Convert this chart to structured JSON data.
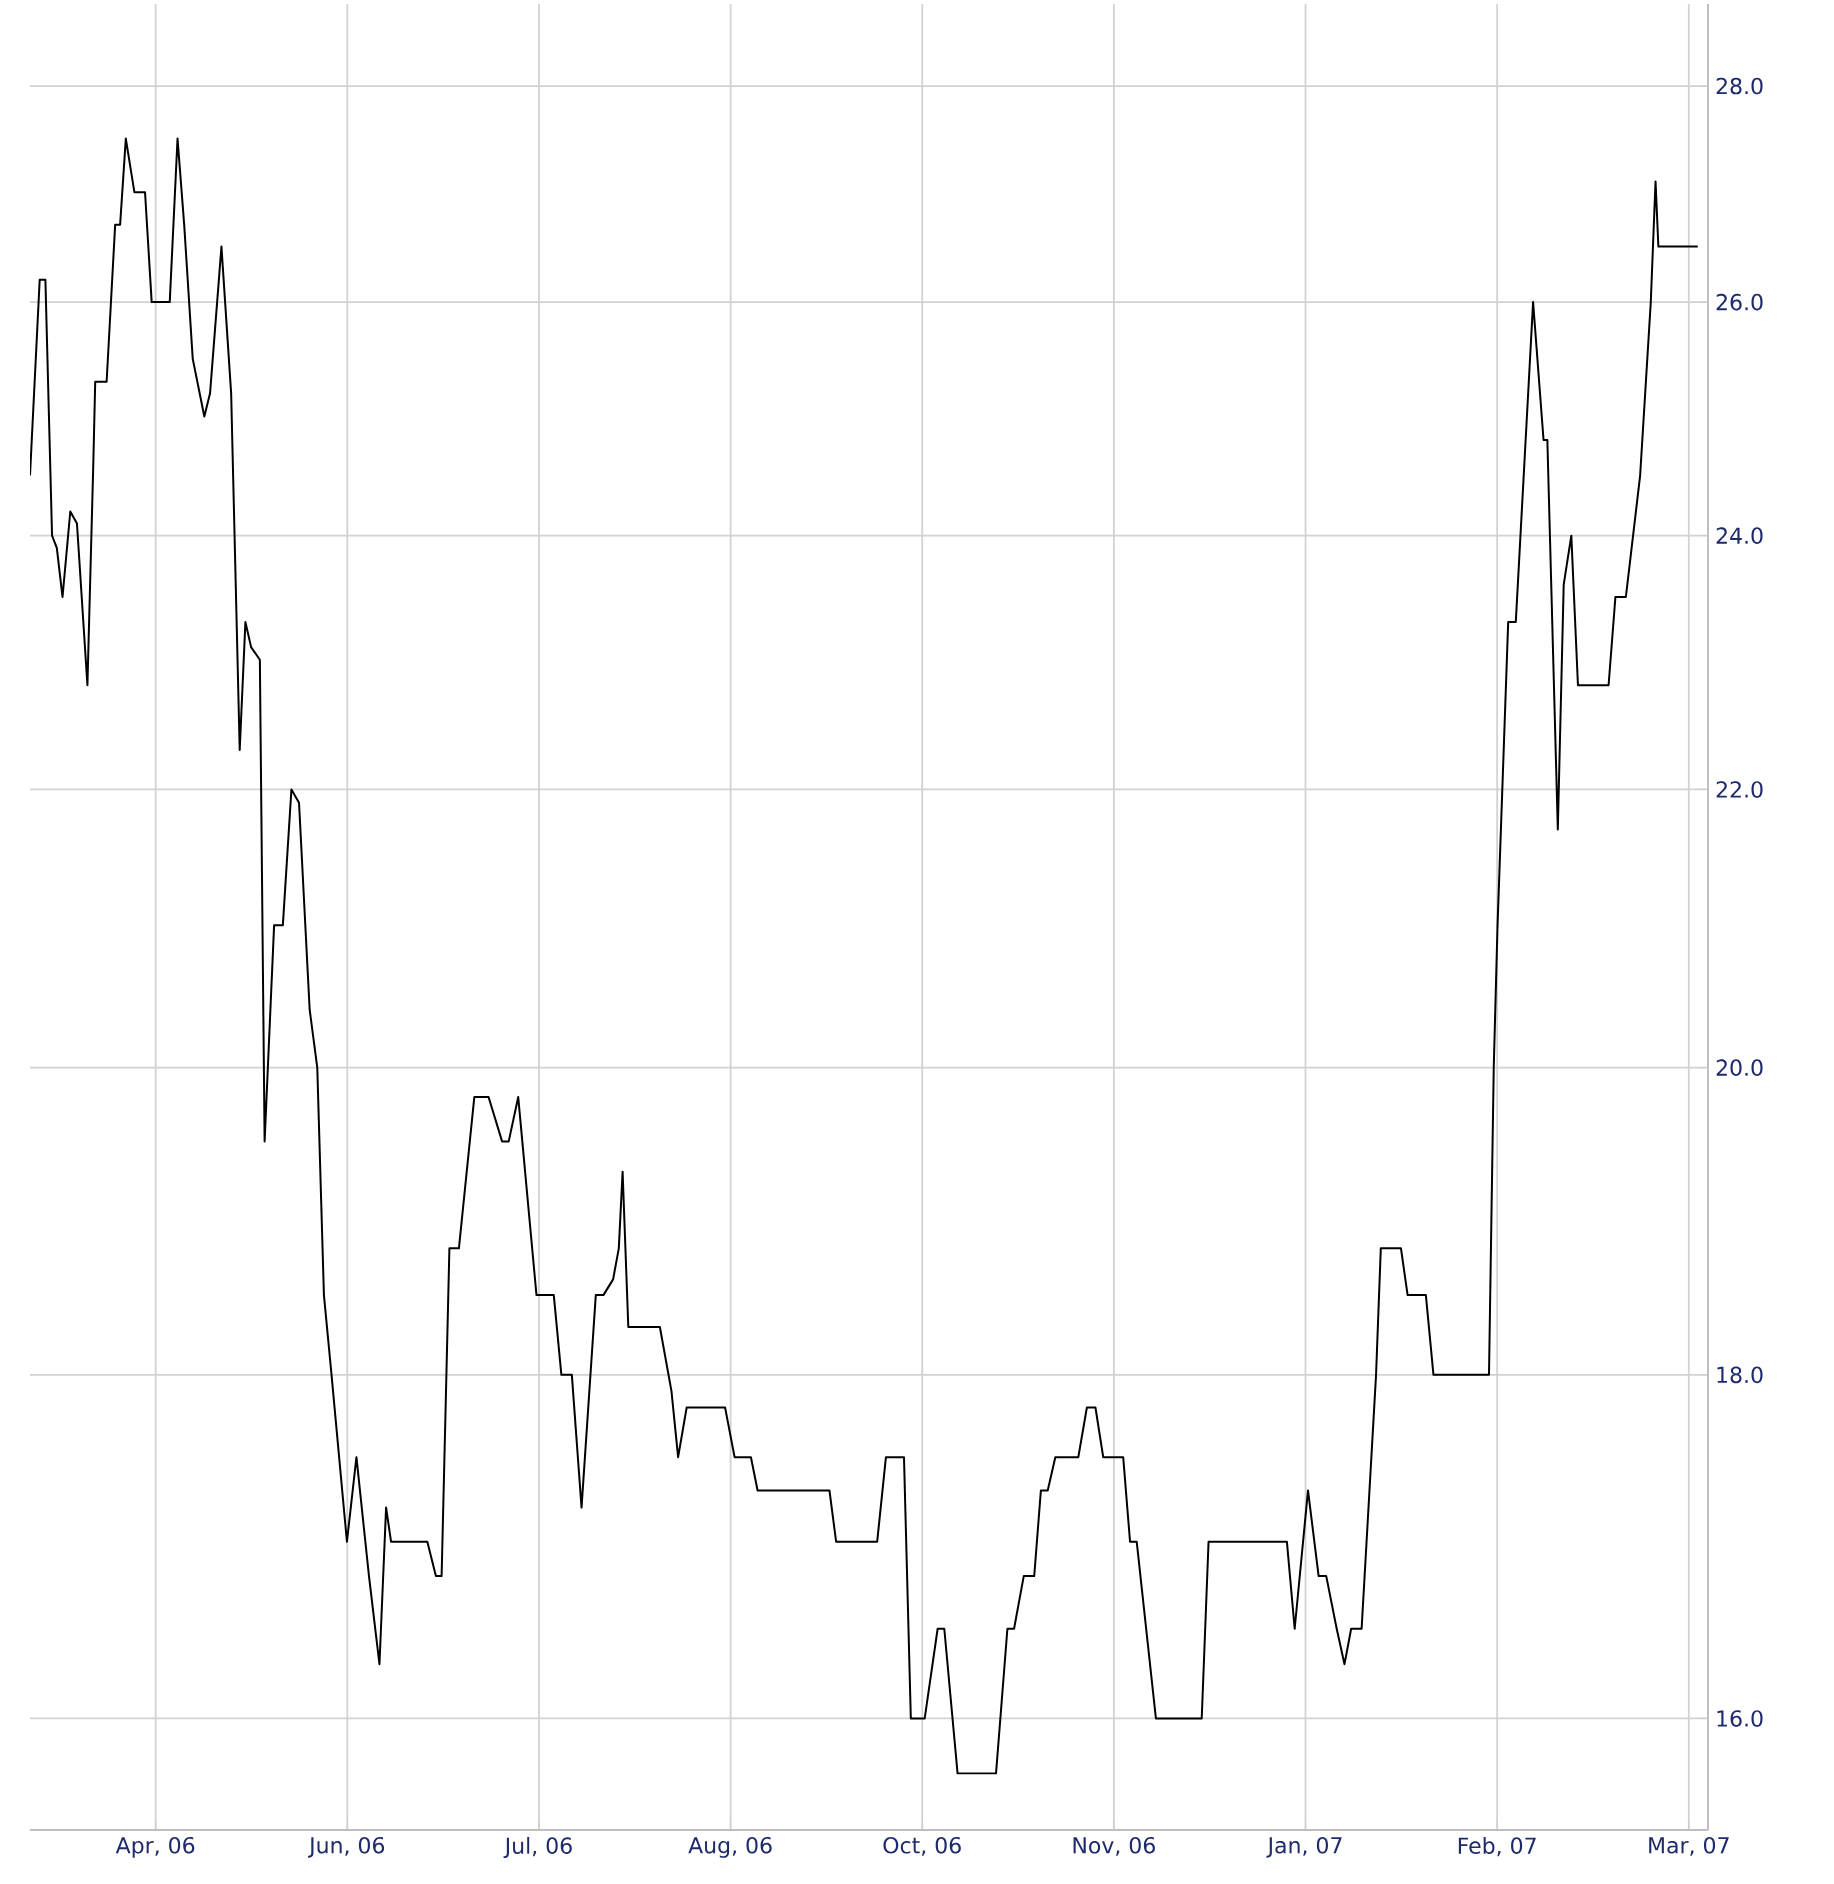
{
  "chart_data": {
    "type": "line",
    "color": "#000000",
    "log": "y",
    "grid": true,
    "xlim": [
      "2006-03-29T11:00",
      "2007-04-01T05:00"
    ],
    "ylim": [
      15.4,
      28.8
    ],
    "xticks": [
      {
        "value": "2006-04-26",
        "label": "Apr, 06"
      },
      {
        "value": "2006-06-07",
        "label": "Jun, 06"
      },
      {
        "value": "2006-07-19",
        "label": "Jul, 06"
      },
      {
        "value": "2006-08-30",
        "label": "Aug, 06"
      },
      {
        "value": "2006-10-11",
        "label": "Oct, 06"
      },
      {
        "value": "2006-11-22",
        "label": "Nov, 06"
      },
      {
        "value": "2007-01-03",
        "label": "Jan, 07"
      },
      {
        "value": "2007-02-14",
        "label": "Feb, 07"
      },
      {
        "value": "2007-03-28",
        "label": "Mar, 07"
      }
    ],
    "yticks": [
      {
        "value": 16,
        "label": "16.0"
      },
      {
        "value": 18,
        "label": "18.0"
      },
      {
        "value": 20,
        "label": "20.0"
      },
      {
        "value": 22,
        "label": "22.0"
      },
      {
        "value": 24,
        "label": "24.0"
      },
      {
        "value": 26,
        "label": "26.0"
      },
      {
        "value": 28,
        "label": "28.0"
      }
    ],
    "x": [
      "2006-03-29T11:00",
      "2006-03-31T14:00",
      "2006-04-01T20:00",
      "2006-04-03T07:00",
      "2006-04-04T08:00",
      "2006-04-05T14:00",
      "2006-04-07T07:00",
      "2006-04-08T18:00",
      "2006-04-11T01:00",
      "2006-04-12T08:00",
      "2006-04-12T18:00",
      "2006-04-15T06:00",
      "2006-04-17T03:00",
      "2006-04-18T05:00",
      "2006-04-19T11:00",
      "2006-04-21T08:00",
      "2006-04-23T16:00",
      "2006-04-25T03:00",
      "2006-04-29T02:00",
      "2006-04-30T19:00",
      "2006-05-02T06:00",
      "2006-05-04T03:00",
      "2006-05-06T16:00",
      "2006-05-07T22:00",
      "2006-05-10T10:00",
      "2006-05-12T13:00",
      "2006-05-14T10:00",
      "2006-05-15T16:00",
      "2006-05-16T22:00",
      "2006-05-18T20:00",
      "2006-05-19T21:00",
      "2006-05-21T23:00",
      "2006-05-23T21:00",
      "2006-05-25T18:00",
      "2006-05-27T10:00",
      "2006-05-29T18:00",
      "2006-05-31T10:00",
      "2006-06-01T21:00",
      "2006-06-03T13:00",
      "2006-06-06T22:00",
      "2006-06-09T00:00",
      "2006-06-11T18:00",
      "2006-06-14T01:00",
      "2006-06-15T12:00",
      "2006-06-16T14:00",
      "2006-06-24T13:00",
      "2006-06-26T10:00",
      "2006-06-27T16:00",
      "2006-06-29T09:00",
      "2006-07-01T11:00",
      "2006-07-04T20:00",
      "2006-07-07T23:00",
      "2006-07-10T22:00",
      "2006-07-12T09:00",
      "2006-07-14T11:00",
      "2006-07-18T11:00",
      "2006-07-22T06:00",
      "2006-07-23T22:00",
      "2006-07-26T05:00",
      "2006-07-28T08:00",
      "2006-07-31T11:00",
      "2006-08-02T03:00",
      "2006-08-04T06:00",
      "2006-08-05T12:00",
      "2006-08-06T08:00",
      "2006-08-07T14:00",
      "2006-08-14T12:00",
      "2006-08-17T01:00",
      "2006-08-18T12:00",
      "2006-08-20T09:00",
      "2006-08-28T19:00",
      "2006-08-30T21:00",
      "2006-09-03T11:00",
      "2006-09-04T22:00",
      "2006-09-20T16:00",
      "2006-09-22T03:00",
      "2006-10-01T03:00",
      "2006-10-03T01:00",
      "2006-10-07T00:00",
      "2006-10-08T12:00",
      "2006-10-11T13:00",
      "2006-10-14T09:00",
      "2006-10-15T20:00",
      "2006-10-18T18:00",
      "2006-10-27T04:00",
      "2006-10-29T16:00",
      "2006-10-31T03:00",
      "2006-11-02T06:00",
      "2006-11-04T13:00",
      "2006-11-06T00:00",
      "2006-11-07T12:00",
      "2006-11-09T04:00",
      "2006-11-14T05:00",
      "2006-11-16T02:00",
      "2006-11-17T23:00",
      "2006-11-19T16:00",
      "2006-11-24T01:00",
      "2006-11-25T13:00",
      "2006-11-27T00:00",
      "2006-12-01T05:00",
      "2006-12-11T06:00",
      "2006-12-12T18:00",
      "2006-12-29T22:00",
      "2006-12-31T15:00",
      "2007-01-03T13:00",
      "2007-01-05T21:00",
      "2007-01-07T13:00",
      "2007-01-09T20:00",
      "2007-01-11T13:00",
      "2007-01-13T00:00",
      "2007-01-15T07:00",
      "2007-01-18T11:00",
      "2007-01-19T12:00",
      "2007-01-23T22:00",
      "2007-01-25T09:00",
      "2007-01-29T09:00",
      "2007-01-31T01:00",
      "2007-02-12T05:00",
      "2007-02-13T06:00",
      "2007-02-14T02:00",
      "2007-02-16T10:00",
      "2007-02-18T02:00",
      "2007-02-21T21:00",
      "2007-02-24T04:00",
      "2007-02-25T00:00",
      "2007-02-27T07:00",
      "2007-02-28T14:00",
      "2007-03-02T06:00",
      "2007-03-03T17:00",
      "2007-03-10T10:00",
      "2007-03-11T22:00",
      "2007-03-14T05:00",
      "2007-03-17T08:00",
      "2007-03-19T16:00",
      "2007-03-20T17:00",
      "2007-03-21T08:00",
      "2007-03-29T23:00"
    ],
    "values": [
      24.5,
      26.2,
      26.2,
      24.0,
      23.9,
      23.5,
      24.2,
      24.1,
      22.8,
      24.6,
      25.3,
      25.3,
      26.7,
      26.7,
      27.5,
      27.0,
      27.0,
      26.0,
      26.0,
      27.5,
      26.7,
      25.5,
      25.0,
      25.2,
      26.5,
      25.2,
      22.3,
      23.3,
      23.1,
      23.0,
      19.5,
      21.0,
      21.0,
      22.0,
      21.9,
      20.4,
      20.0,
      18.5,
      18.0,
      17.0,
      17.5,
      16.8,
      16.3,
      17.2,
      17.0,
      17.0,
      16.8,
      16.8,
      18.8,
      18.8,
      19.8,
      19.8,
      19.5,
      19.5,
      19.8,
      18.5,
      18.5,
      18.0,
      18.0,
      17.2,
      18.5,
      18.5,
      18.6,
      18.8,
      19.3,
      18.3,
      18.3,
      17.9,
      17.5,
      17.8,
      17.8,
      17.5,
      17.5,
      17.3,
      17.3,
      17.0,
      17.0,
      17.5,
      17.5,
      16.0,
      16.0,
      16.5,
      16.5,
      15.7,
      15.7,
      16.5,
      16.5,
      16.8,
      16.8,
      17.3,
      17.3,
      17.5,
      17.5,
      17.8,
      17.8,
      17.5,
      17.5,
      17.0,
      17.0,
      16.0,
      16.0,
      17.0,
      17.0,
      16.5,
      17.3,
      16.8,
      16.8,
      16.5,
      16.3,
      16.5,
      16.5,
      18.0,
      18.8,
      18.8,
      18.5,
      18.5,
      18.0,
      18.0,
      20.0,
      21.0,
      23.3,
      23.3,
      26.0,
      24.8,
      24.8,
      21.7,
      23.6,
      24.0,
      22.8,
      22.8,
      23.5,
      23.5,
      24.5,
      26.0,
      27.1,
      26.5,
      26.5
    ]
  }
}
